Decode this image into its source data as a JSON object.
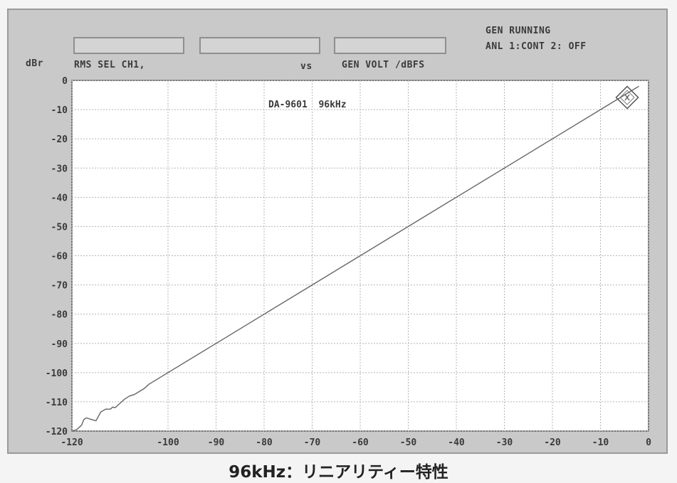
{
  "header": {
    "status_line1": "GEN RUNNING",
    "status_line2": "ANL 1:CONT 2: OFF",
    "y_unit": "dBr",
    "measure_label": "RMS SEL  CH1,",
    "vs_label": "vs",
    "x_measure_label": "GEN VOLT /dBFS"
  },
  "caption": "96kHz：リニアリティー特性",
  "chart_data": {
    "type": "line",
    "title": "DA-9601  96kHz",
    "xlabel": "GEN VOLT /dBFS",
    "ylabel": "dBr",
    "xlim": [
      -120,
      0
    ],
    "ylim": [
      -120,
      0
    ],
    "x_ticks": [
      -120,
      -100,
      -90,
      -80,
      -70,
      -60,
      -50,
      -40,
      -30,
      -20,
      -10,
      0
    ],
    "x_tick_labels": [
      "-120",
      "-100",
      "-90",
      "-80",
      "-70",
      "-60",
      "-50",
      "-40",
      "-30",
      "-20",
      "-10",
      "0"
    ],
    "y_ticks": [
      0,
      -10,
      -20,
      -30,
      -40,
      -50,
      -60,
      -70,
      -80,
      -90,
      -100,
      -110,
      -120
    ],
    "y_tick_labels": [
      "0",
      "-10",
      "-20",
      "-30",
      "-40",
      "-50",
      "-60",
      "-70",
      "-80",
      "-90",
      "-100",
      "-110",
      "-120"
    ],
    "grid": true,
    "series": [
      {
        "x": [
          -120,
          -119,
          -118,
          -117.5,
          -117,
          -116,
          -115,
          -114.5,
          -114,
          -113,
          -112,
          -111.5,
          -111,
          -110,
          -109,
          -108.5,
          -108,
          -107,
          -106,
          -105,
          -104,
          -100,
          -90,
          -80,
          -70,
          -60,
          -50,
          -40,
          -30,
          -20,
          -10,
          -5,
          -2
        ],
        "y": [
          -120,
          -119.5,
          -118,
          -116,
          -115.5,
          -116,
          -116.5,
          -115,
          -113.5,
          -112.5,
          -112.5,
          -111.8,
          -112,
          -110.5,
          -109,
          -108.5,
          -108,
          -107.5,
          -106.5,
          -105.5,
          -104,
          -100,
          -90,
          -80,
          -70,
          -60,
          -50,
          -40,
          -30,
          -20,
          -10,
          -5,
          -2
        ]
      }
    ],
    "marker_annotation": "R&S logo marker near top-right"
  }
}
